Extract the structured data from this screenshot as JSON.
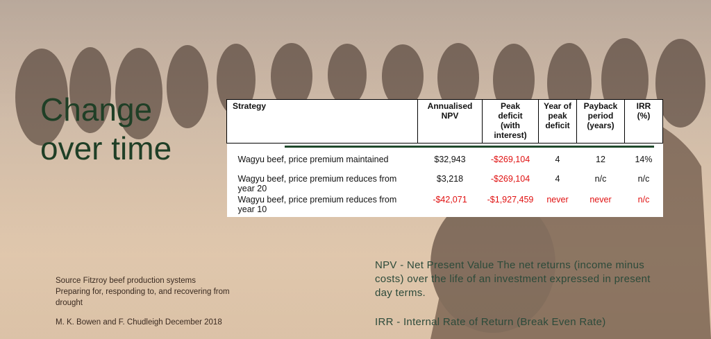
{
  "title_line1": "Change",
  "title_line2": "over time",
  "table": {
    "headers": {
      "strategy": "Strategy",
      "npv": [
        "Annualised",
        "NPV"
      ],
      "peak": [
        "Peak",
        "deficit",
        "(with",
        "interest)"
      ],
      "year": [
        "Year of",
        "peak",
        "deficit"
      ],
      "payback": [
        "Payback",
        "period",
        "(years)"
      ],
      "irr": [
        "IRR",
        "(%)"
      ]
    },
    "rows": [
      {
        "strategy": "Wagyu beef, price premium maintained",
        "npv": "$32,943",
        "peak": "-$269,104",
        "year": "4",
        "payback": "12",
        "irr": "14%"
      },
      {
        "strategy": "Wagyu beef, price premium reduces from year 20",
        "npv": "$3,218",
        "peak": "-$269,104",
        "year": "4",
        "payback": "n/c",
        "irr": "n/c"
      },
      {
        "strategy": "Wagyu beef, price premium reduces from year 10",
        "npv": "-$42,071",
        "peak": "-$1,927,459",
        "year": "never",
        "payback": "never",
        "irr": "n/c"
      }
    ]
  },
  "source_lines": [
    "Source Fitzroy beef production systems",
    "Preparing for, responding to, and recovering from drought"
  ],
  "authors": "M. K. Bowen and F. Chudleigh December 2018",
  "npv_note": "NPV - Net Present Value The net returns (income minus costs) over the life of an investment expressed in present day terms.",
  "irr_note": "IRR - Internal Rate of Return (Break Even Rate)",
  "colors": {
    "title": "#1f3f26",
    "negative": "#e01010",
    "note": "#2c4a3a"
  }
}
